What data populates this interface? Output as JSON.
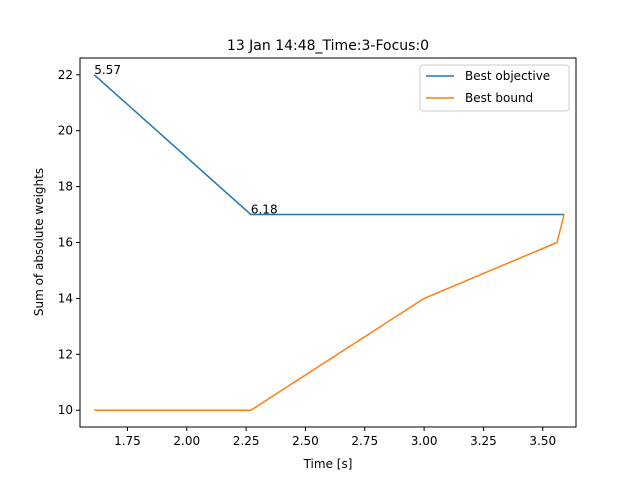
{
  "chart_data": {
    "type": "line",
    "title": "13 Jan 14:48_Time:3-Focus:0",
    "xlabel": "Time [s]",
    "ylabel": "Sum of absolute weights",
    "xlim": [
      1.55,
      3.64
    ],
    "ylim": [
      9.4,
      22.6
    ],
    "xticks": [
      1.75,
      2.0,
      2.25,
      2.5,
      2.75,
      3.0,
      3.25,
      3.5
    ],
    "xtick_labels": [
      "1.75",
      "2.00",
      "2.25",
      "2.50",
      "2.75",
      "3.00",
      "3.25",
      "3.50"
    ],
    "yticks": [
      10,
      12,
      14,
      16,
      18,
      20,
      22
    ],
    "ytick_labels": [
      "10",
      "12",
      "14",
      "16",
      "18",
      "20",
      "22"
    ],
    "grid": false,
    "legend_position": "top-right",
    "series": [
      {
        "name": "Best objective",
        "color": "#1f77b4",
        "x": [
          1.61,
          2.27,
          3.59
        ],
        "y": [
          22,
          17,
          17
        ]
      },
      {
        "name": "Best bound",
        "color": "#ff7f0e",
        "x": [
          1.61,
          2.27,
          3.0,
          3.56,
          3.59
        ],
        "y": [
          10,
          10,
          14,
          16,
          17
        ]
      }
    ],
    "annotations": [
      {
        "text": "5.57",
        "x": 1.61,
        "y": 22
      },
      {
        "text": "6.18",
        "x": 2.27,
        "y": 17
      }
    ]
  }
}
